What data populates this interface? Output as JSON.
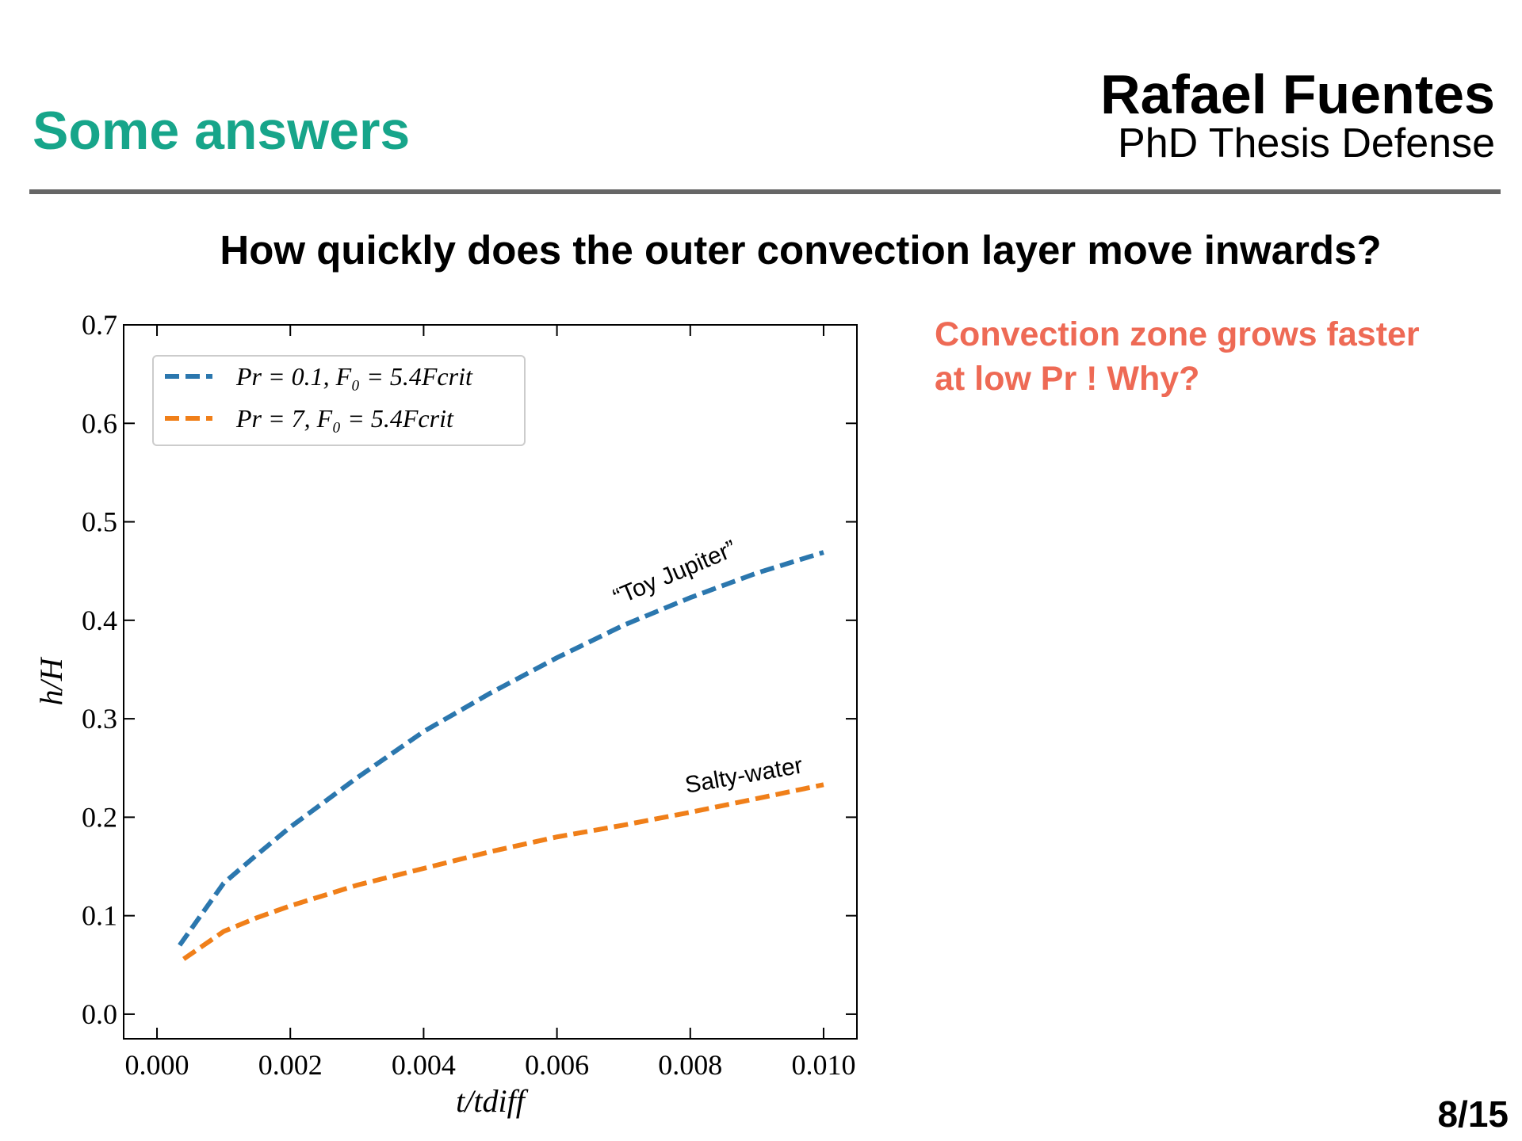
{
  "slide": {
    "title": "Some answers",
    "author": "Rafael Fuentes",
    "subtitle": "PhD Thesis Defense",
    "question": "How quickly does the outer convection layer move inwards?",
    "note_lines": [
      "Convection zone grows faster",
      "at low Pr !  Why?"
    ],
    "page": "8/15"
  },
  "chart_data": {
    "type": "line",
    "x_label": "t/tdiff",
    "y_label": "h/H",
    "xlim": [
      -0.0005,
      0.0105
    ],
    "ylim": [
      -0.025,
      0.7
    ],
    "xticks": [
      {
        "value": 0,
        "label": "0.000"
      },
      {
        "value": 0.002,
        "label": "0.002"
      },
      {
        "value": 0.004,
        "label": "0.004"
      },
      {
        "value": 0.006,
        "label": "0.006"
      },
      {
        "value": 0.008,
        "label": "0.008"
      },
      {
        "value": 0.01,
        "label": "0.010"
      }
    ],
    "yticks": [
      {
        "value": 0,
        "label": "0.0"
      },
      {
        "value": 0.1,
        "label": "0.1"
      },
      {
        "value": 0.2,
        "label": "0.2"
      },
      {
        "value": 0.3,
        "label": "0.3"
      },
      {
        "value": 0.4,
        "label": "0.4"
      },
      {
        "value": 0.5,
        "label": "0.5"
      },
      {
        "value": 0.6,
        "label": "0.6"
      },
      {
        "value": 0.7,
        "label": "0.7"
      }
    ],
    "legend": "upper left",
    "series": [
      {
        "name": "Pr = 0.1, F₀ = 5.4Fcrit",
        "color": "#2b77ae",
        "x": [
          0.00034,
          0.001,
          0.0015,
          0.002,
          0.003,
          0.004,
          0.005,
          0.006,
          0.007,
          0.008,
          0.009,
          0.01
        ],
        "values": [
          0.07,
          0.133,
          0.162,
          0.19,
          0.24,
          0.287,
          0.326,
          0.362,
          0.395,
          0.423,
          0.448,
          0.469
        ]
      },
      {
        "name": "Pr = 7, F₀ = 5.4Fcrit",
        "color": "#f07f19",
        "x": [
          0.0004,
          0.001,
          0.0015,
          0.002,
          0.003,
          0.004,
          0.005,
          0.006,
          0.007,
          0.008,
          0.009,
          0.01
        ],
        "values": [
          0.056,
          0.084,
          0.098,
          0.11,
          0.131,
          0.148,
          0.165,
          0.18,
          0.192,
          0.205,
          0.219,
          0.233
        ]
      }
    ],
    "annotations": [
      "“Toy Jupiter”",
      "Salty-water"
    ]
  }
}
